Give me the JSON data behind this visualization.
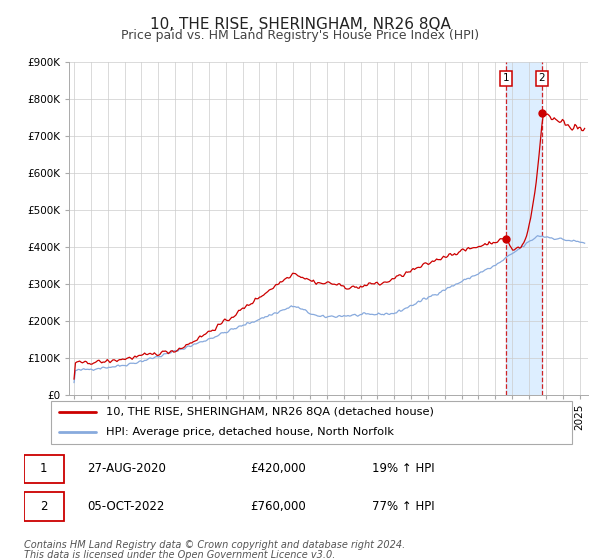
{
  "title": "10, THE RISE, SHERINGHAM, NR26 8QA",
  "subtitle": "Price paid vs. HM Land Registry's House Price Index (HPI)",
  "ylim": [
    0,
    900000
  ],
  "xlim_start": 1994.7,
  "xlim_end": 2025.5,
  "grid_color": "#cccccc",
  "red_line_color": "#cc0000",
  "blue_line_color": "#88aadd",
  "highlight_bg_color": "#ddeeff",
  "vline_color": "#cc0000",
  "marker1_date": 2020.65,
  "marker1_price": 420000,
  "marker2_date": 2022.76,
  "marker2_price": 760000,
  "legend_label_red": "10, THE RISE, SHERINGHAM, NR26 8QA (detached house)",
  "legend_label_blue": "HPI: Average price, detached house, North Norfolk",
  "table_row1_date": "27-AUG-2020",
  "table_row1_price": "£420,000",
  "table_row1_hpi": "19% ↑ HPI",
  "table_row2_date": "05-OCT-2022",
  "table_row2_price": "£760,000",
  "table_row2_hpi": "77% ↑ HPI",
  "footer_line1": "Contains HM Land Registry data © Crown copyright and database right 2024.",
  "footer_line2": "This data is licensed under the Open Government Licence v3.0."
}
